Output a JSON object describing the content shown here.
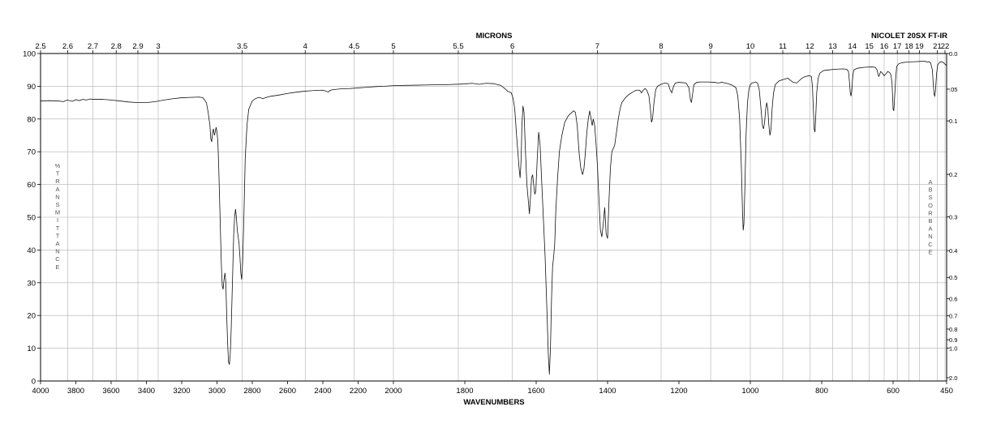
{
  "chart_data": {
    "type": "line",
    "instrument": "NICOLET 20SX FT-IR",
    "xlabel": "WAVENUMBERS",
    "x2label": "MICRONS",
    "ylabel_letters": [
      "%",
      "T",
      "R",
      "A",
      "N",
      "S",
      "M",
      "I",
      "T",
      "T",
      "A",
      "N",
      "C",
      "E"
    ],
    "y2label_letters": [
      "A",
      "B",
      "S",
      "O",
      "R",
      "B",
      "A",
      "N",
      "C",
      "E"
    ],
    "xlim": [
      4000,
      450
    ],
    "x_breaks": [
      2000
    ],
    "ylim": [
      0,
      100
    ],
    "x_ticks": [
      {
        "v": 4000,
        "label": "4000"
      },
      {
        "v": 3800,
        "label": "3800"
      },
      {
        "v": 3600,
        "label": "3600"
      },
      {
        "v": 3400,
        "label": "3400"
      },
      {
        "v": 3200,
        "label": "3200"
      },
      {
        "v": 3000,
        "label": "3000"
      },
      {
        "v": 2800,
        "label": "2800"
      },
      {
        "v": 2600,
        "label": "2600"
      },
      {
        "v": 2400,
        "label": "2400"
      },
      {
        "v": 2200,
        "label": "2200"
      },
      {
        "v": 2000,
        "label": "2000"
      },
      {
        "v": 1800,
        "label": "1800"
      },
      {
        "v": 1600,
        "label": "1600"
      },
      {
        "v": 1400,
        "label": "1400"
      },
      {
        "v": 1200,
        "label": "1200"
      },
      {
        "v": 1000,
        "label": "1000"
      },
      {
        "v": 800,
        "label": "800"
      },
      {
        "v": 600,
        "label": "600"
      },
      {
        "v": 450,
        "label": "450"
      }
    ],
    "micron_ticks": [
      {
        "v": 2.5,
        "label": "2.5"
      },
      {
        "v": 2.6,
        "label": "2.6"
      },
      {
        "v": 2.7,
        "label": "2.7"
      },
      {
        "v": 2.8,
        "label": "2.8"
      },
      {
        "v": 2.9,
        "label": "2.9"
      },
      {
        "v": 3,
        "label": "3"
      },
      {
        "v": 3.5,
        "label": "3.5"
      },
      {
        "v": 4,
        "label": "4"
      },
      {
        "v": 4.5,
        "label": "4.5"
      },
      {
        "v": 5,
        "label": "5"
      },
      {
        "v": 5.5,
        "label": "5.5"
      },
      {
        "v": 6,
        "label": "6"
      },
      {
        "v": 7,
        "label": "7"
      },
      {
        "v": 8,
        "label": "8"
      },
      {
        "v": 9,
        "label": "9"
      },
      {
        "v": 10,
        "label": "10"
      },
      {
        "v": 11,
        "label": "11"
      },
      {
        "v": 12,
        "label": "12"
      },
      {
        "v": 13,
        "label": "13"
      },
      {
        "v": 14,
        "label": "14"
      },
      {
        "v": 15,
        "label": "15"
      },
      {
        "v": 16,
        "label": "16"
      },
      {
        "v": 17,
        "label": "17"
      },
      {
        "v": 18,
        "label": "18"
      },
      {
        "v": 19,
        "label": "19"
      },
      {
        "v": 21,
        "label": "21"
      },
      {
        "v": 22,
        "label": "22"
      }
    ],
    "y_ticks": [
      {
        "v": 0,
        "label": "0"
      },
      {
        "v": 10,
        "label": "10"
      },
      {
        "v": 20,
        "label": "20"
      },
      {
        "v": 30,
        "label": "30"
      },
      {
        "v": 40,
        "label": "40"
      },
      {
        "v": 50,
        "label": "50"
      },
      {
        "v": 60,
        "label": "60"
      },
      {
        "v": 70,
        "label": "70"
      },
      {
        "v": 80,
        "label": "80"
      },
      {
        "v": 90,
        "label": "90"
      },
      {
        "v": 100,
        "label": "100"
      }
    ],
    "absorbance_ticks": [
      {
        "v": 0.0,
        "label": "0.0"
      },
      {
        "v": 0.05,
        "label": ".05"
      },
      {
        "v": 0.1,
        "label": "0.1"
      },
      {
        "v": 0.2,
        "label": "0.2"
      },
      {
        "v": 0.3,
        "label": "0.3"
      },
      {
        "v": 0.4,
        "label": "0.4"
      },
      {
        "v": 0.5,
        "label": "0.5"
      },
      {
        "v": 0.6,
        "label": "0.6"
      },
      {
        "v": 0.7,
        "label": "0.7"
      },
      {
        "v": 0.8,
        "label": "0.8"
      },
      {
        "v": 0.9,
        "label": "0.9"
      },
      {
        "v": 1.0,
        "label": "1.0"
      },
      {
        "v": 2.0,
        "label": "2.0"
      }
    ],
    "spectrum": [
      [
        4000,
        85.5
      ],
      [
        3950,
        85.6
      ],
      [
        3900,
        85.5
      ],
      [
        3870,
        85.3
      ],
      [
        3850,
        85.8
      ],
      [
        3820,
        85.4
      ],
      [
        3800,
        85.9
      ],
      [
        3780,
        85.6
      ],
      [
        3760,
        86.0
      ],
      [
        3740,
        85.8
      ],
      [
        3720,
        86.1
      ],
      [
        3700,
        86.0
      ],
      [
        3650,
        86.0
      ],
      [
        3600,
        85.8
      ],
      [
        3550,
        85.5
      ],
      [
        3500,
        85.2
      ],
      [
        3450,
        85.0
      ],
      [
        3400,
        85.0
      ],
      [
        3350,
        85.3
      ],
      [
        3300,
        85.8
      ],
      [
        3250,
        86.2
      ],
      [
        3200,
        86.5
      ],
      [
        3150,
        86.6
      ],
      [
        3100,
        86.7
      ],
      [
        3080,
        86.5
      ],
      [
        3060,
        85.0
      ],
      [
        3050,
        82.0
      ],
      [
        3040,
        78.0
      ],
      [
        3035,
        74.0
      ],
      [
        3030,
        73.0
      ],
      [
        3025,
        76.0
      ],
      [
        3020,
        77.0
      ],
      [
        3015,
        75.0
      ],
      [
        3010,
        76.0
      ],
      [
        3005,
        77.5
      ],
      [
        3000,
        76.0
      ],
      [
        2995,
        73.0
      ],
      [
        2990,
        65.0
      ],
      [
        2985,
        55.0
      ],
      [
        2980,
        45.0
      ],
      [
        2975,
        35.0
      ],
      [
        2970,
        29.0
      ],
      [
        2965,
        28.0
      ],
      [
        2960,
        31.0
      ],
      [
        2955,
        33.0
      ],
      [
        2950,
        30.0
      ],
      [
        2945,
        20.0
      ],
      [
        2940,
        12.0
      ],
      [
        2935,
        6.0
      ],
      [
        2930,
        5.0
      ],
      [
        2925,
        8.0
      ],
      [
        2920,
        15.0
      ],
      [
        2915,
        25.0
      ],
      [
        2910,
        35.0
      ],
      [
        2905,
        45.0
      ],
      [
        2900,
        50.0
      ],
      [
        2895,
        52.5
      ],
      [
        2890,
        50.0
      ],
      [
        2885,
        46.0
      ],
      [
        2880,
        44.0
      ],
      [
        2875,
        42.0
      ],
      [
        2870,
        38.0
      ],
      [
        2865,
        33.0
      ],
      [
        2860,
        31.0
      ],
      [
        2855,
        36.0
      ],
      [
        2850,
        45.0
      ],
      [
        2845,
        56.0
      ],
      [
        2840,
        68.0
      ],
      [
        2830,
        78.0
      ],
      [
        2820,
        83.0
      ],
      [
        2800,
        85.5
      ],
      [
        2780,
        86.3
      ],
      [
        2760,
        86.6
      ],
      [
        2740,
        86.2
      ],
      [
        2720,
        86.6
      ],
      [
        2700,
        86.9
      ],
      [
        2650,
        87.3
      ],
      [
        2600,
        87.8
      ],
      [
        2550,
        88.2
      ],
      [
        2500,
        88.5
      ],
      [
        2450,
        88.7
      ],
      [
        2400,
        88.8
      ],
      [
        2380,
        88.5
      ],
      [
        2370,
        88.2
      ],
      [
        2360,
        88.7
      ],
      [
        2350,
        88.9
      ],
      [
        2300,
        89.2
      ],
      [
        2250,
        89.3
      ],
      [
        2200,
        89.5
      ],
      [
        2150,
        89.7
      ],
      [
        2100,
        89.9
      ],
      [
        2050,
        90.0
      ],
      [
        2000,
        90.2
      ],
      [
        1950,
        90.3
      ],
      [
        1900,
        90.4
      ],
      [
        1850,
        90.5
      ],
      [
        1800,
        90.7
      ],
      [
        1780,
        90.9
      ],
      [
        1760,
        90.6
      ],
      [
        1740,
        90.9
      ],
      [
        1720,
        90.8
      ],
      [
        1700,
        90.3
      ],
      [
        1690,
        89.5
      ],
      [
        1680,
        88.5
      ],
      [
        1670,
        88.0
      ],
      [
        1665,
        86.5
      ],
      [
        1660,
        83.0
      ],
      [
        1655,
        75.0
      ],
      [
        1650,
        68.0
      ],
      [
        1648,
        65.0
      ],
      [
        1645,
        62.0
      ],
      [
        1642,
        68.0
      ],
      [
        1640,
        78.0
      ],
      [
        1637,
        84.0
      ],
      [
        1634,
        82.0
      ],
      [
        1630,
        70.0
      ],
      [
        1626,
        60.0
      ],
      [
        1622,
        55.0
      ],
      [
        1619,
        51.0
      ],
      [
        1616,
        56.0
      ],
      [
        1613,
        62.0
      ],
      [
        1610,
        63.0
      ],
      [
        1607,
        60.0
      ],
      [
        1604,
        57.0
      ],
      [
        1601,
        58.0
      ],
      [
        1597,
        68.0
      ],
      [
        1593,
        76.0
      ],
      [
        1589,
        72.0
      ],
      [
        1585,
        62.0
      ],
      [
        1580,
        50.0
      ],
      [
        1575,
        38.0
      ],
      [
        1570,
        22.0
      ],
      [
        1566,
        8.0
      ],
      [
        1563,
        2.0
      ],
      [
        1560,
        10.0
      ],
      [
        1557,
        25.0
      ],
      [
        1554,
        35.0
      ],
      [
        1551,
        38.0
      ],
      [
        1548,
        42.0
      ],
      [
        1545,
        52.0
      ],
      [
        1540,
        62.0
      ],
      [
        1535,
        70.0
      ],
      [
        1528,
        75.0
      ],
      [
        1520,
        79.0
      ],
      [
        1510,
        81.0
      ],
      [
        1500,
        82.0
      ],
      [
        1495,
        82.5
      ],
      [
        1490,
        82.0
      ],
      [
        1485,
        78.0
      ],
      [
        1480,
        70.0
      ],
      [
        1475,
        65.0
      ],
      [
        1470,
        63.0
      ],
      [
        1466,
        65.0
      ],
      [
        1462,
        70.0
      ],
      [
        1458,
        76.0
      ],
      [
        1454,
        80.0
      ],
      [
        1450,
        82.5
      ],
      [
        1446,
        80.0
      ],
      [
        1443,
        78.0
      ],
      [
        1440,
        80.0
      ],
      [
        1436,
        78.0
      ],
      [
        1432,
        72.0
      ],
      [
        1428,
        65.0
      ],
      [
        1424,
        55.0
      ],
      [
        1420,
        46.0
      ],
      [
        1416,
        44.0
      ],
      [
        1412,
        48.0
      ],
      [
        1408,
        53.0
      ],
      [
        1404,
        45.0
      ],
      [
        1400,
        43.5
      ],
      [
        1396,
        55.0
      ],
      [
        1392,
        65.0
      ],
      [
        1388,
        70.0
      ],
      [
        1384,
        71.0
      ],
      [
        1380,
        72.0
      ],
      [
        1375,
        76.0
      ],
      [
        1370,
        80.0
      ],
      [
        1365,
        83.0
      ],
      [
        1360,
        85.0
      ],
      [
        1350,
        86.5
      ],
      [
        1340,
        87.5
      ],
      [
        1330,
        88.2
      ],
      [
        1320,
        88.8
      ],
      [
        1310,
        88.8
      ],
      [
        1305,
        88.0
      ],
      [
        1300,
        88.8
      ],
      [
        1295,
        89.3
      ],
      [
        1290,
        88.8
      ],
      [
        1284,
        87.0
      ],
      [
        1280,
        83.0
      ],
      [
        1277,
        79.0
      ],
      [
        1274,
        80.0
      ],
      [
        1270,
        85.0
      ],
      [
        1265,
        89.0
      ],
      [
        1260,
        90.0
      ],
      [
        1250,
        90.6
      ],
      [
        1240,
        91.0
      ],
      [
        1230,
        90.8
      ],
      [
        1225,
        89.0
      ],
      [
        1220,
        88.0
      ],
      [
        1215,
        90.0
      ],
      [
        1210,
        91.0
      ],
      [
        1200,
        91.2
      ],
      [
        1190,
        91.1
      ],
      [
        1180,
        91.0
      ],
      [
        1172,
        89.5
      ],
      [
        1168,
        86.0
      ],
      [
        1165,
        85.0
      ],
      [
        1162,
        87.5
      ],
      [
        1158,
        90.5
      ],
      [
        1150,
        91.2
      ],
      [
        1140,
        91.3
      ],
      [
        1120,
        91.3
      ],
      [
        1100,
        91.2
      ],
      [
        1090,
        91.0
      ],
      [
        1080,
        91.2
      ],
      [
        1070,
        91.0
      ],
      [
        1060,
        90.7
      ],
      [
        1050,
        90.3
      ],
      [
        1040,
        89.5
      ],
      [
        1035,
        87.0
      ],
      [
        1030,
        80.0
      ],
      [
        1025,
        65.0
      ],
      [
        1022,
        52.0
      ],
      [
        1020,
        46.0
      ],
      [
        1018,
        48.0
      ],
      [
        1015,
        60.0
      ],
      [
        1012,
        75.0
      ],
      [
        1008,
        85.0
      ],
      [
        1004,
        89.0
      ],
      [
        1000,
        90.5
      ],
      [
        995,
        91.0
      ],
      [
        985,
        91.3
      ],
      [
        980,
        91.0
      ],
      [
        975,
        89.0
      ],
      [
        970,
        83.0
      ],
      [
        966,
        78.0
      ],
      [
        963,
        77.0
      ],
      [
        960,
        79.0
      ],
      [
        957,
        83.0
      ],
      [
        954,
        85.0
      ],
      [
        951,
        83.0
      ],
      [
        948,
        78.0
      ],
      [
        945,
        75.0
      ],
      [
        942,
        77.0
      ],
      [
        939,
        83.0
      ],
      [
        935,
        88.0
      ],
      [
        930,
        90.5
      ],
      [
        920,
        91.6
      ],
      [
        910,
        92.0
      ],
      [
        900,
        92.3
      ],
      [
        895,
        92.5
      ],
      [
        890,
        92.0
      ],
      [
        880,
        91.2
      ],
      [
        870,
        91.0
      ],
      [
        862,
        91.8
      ],
      [
        855,
        92.5
      ],
      [
        845,
        93.0
      ],
      [
        835,
        93.2
      ],
      [
        829,
        93.0
      ],
      [
        826,
        90.0
      ],
      [
        823,
        82.0
      ],
      [
        821,
        77.0
      ],
      [
        819,
        76.0
      ],
      [
        817,
        80.0
      ],
      [
        814,
        88.0
      ],
      [
        810,
        92.5
      ],
      [
        805,
        94.0
      ],
      [
        795,
        94.8
      ],
      [
        780,
        95.0
      ],
      [
        760,
        95.2
      ],
      [
        740,
        95.3
      ],
      [
        730,
        95.2
      ],
      [
        725,
        94.5
      ],
      [
        722,
        91.0
      ],
      [
        720,
        88.0
      ],
      [
        718,
        87.0
      ],
      [
        716,
        88.5
      ],
      [
        713,
        93.0
      ],
      [
        710,
        95.0
      ],
      [
        700,
        95.5
      ],
      [
        680,
        95.8
      ],
      [
        660,
        95.9
      ],
      [
        650,
        95.8
      ],
      [
        645,
        95.0
      ],
      [
        642,
        93.5
      ],
      [
        640,
        93.0
      ],
      [
        638,
        93.5
      ],
      [
        635,
        94.5
      ],
      [
        630,
        94.0
      ],
      [
        625,
        93.2
      ],
      [
        620,
        93.8
      ],
      [
        615,
        94.5
      ],
      [
        610,
        94.2
      ],
      [
        606,
        93.5
      ],
      [
        603,
        91.0
      ],
      [
        601,
        86.0
      ],
      [
        600,
        83.0
      ],
      [
        598,
        82.5
      ],
      [
        596,
        86.0
      ],
      [
        593,
        92.0
      ],
      [
        590,
        96.0
      ],
      [
        585,
        96.8
      ],
      [
        575,
        97.2
      ],
      [
        560,
        97.4
      ],
      [
        540,
        97.5
      ],
      [
        520,
        97.6
      ],
      [
        510,
        97.6
      ],
      [
        505,
        97.4
      ],
      [
        500,
        97.5
      ],
      [
        495,
        97.2
      ],
      [
        490,
        95.0
      ],
      [
        487,
        90.0
      ],
      [
        485,
        87.5
      ],
      [
        483,
        87.0
      ],
      [
        481,
        89.0
      ],
      [
        478,
        94.0
      ],
      [
        475,
        96.5
      ],
      [
        470,
        97.3
      ],
      [
        465,
        97.5
      ],
      [
        460,
        97.3
      ],
      [
        455,
        96.8
      ],
      [
        450,
        96.3
      ]
    ]
  }
}
